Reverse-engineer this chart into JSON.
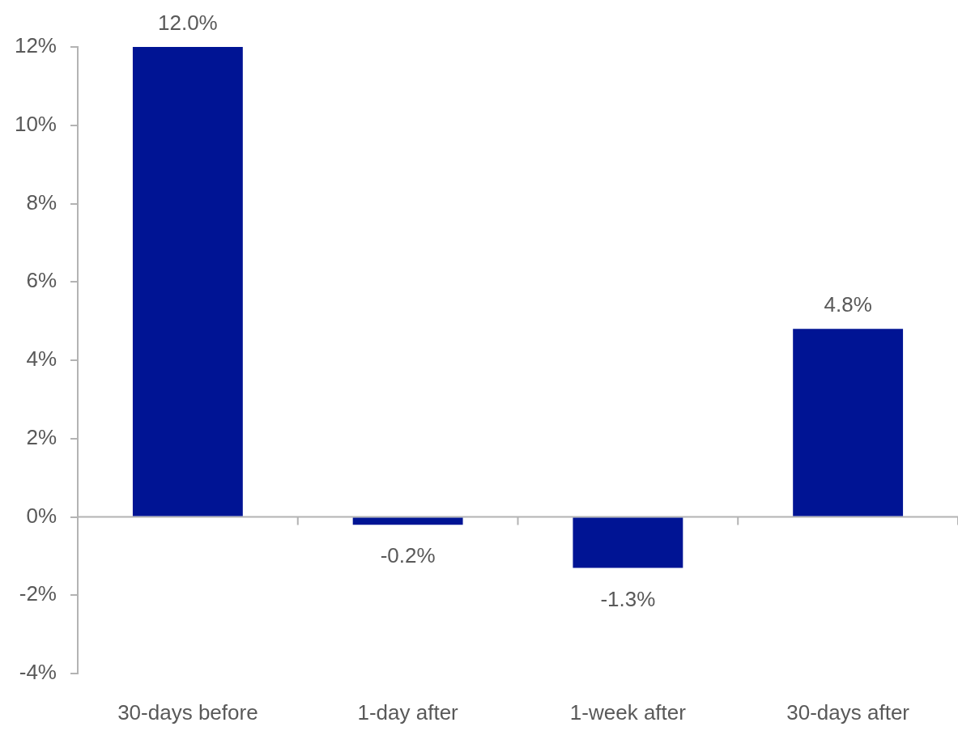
{
  "chart_data": {
    "type": "bar",
    "categories": [
      "30-days before",
      "1-day after",
      "1-week after",
      "30-days after"
    ],
    "values": [
      12.0,
      -0.2,
      -1.3,
      4.8
    ],
    "color": "#001494",
    "value_labels": [
      "12.0%",
      "-0.2%",
      "-1.3%",
      "4.8%"
    ],
    "ylim": [
      -4,
      12
    ],
    "yticks": [
      {
        "value": -4,
        "label": "-4%"
      },
      {
        "value": -2,
        "label": "-2%"
      },
      {
        "value": 0,
        "label": "0%"
      },
      {
        "value": 2,
        "label": "2%"
      },
      {
        "value": 4,
        "label": "4%"
      },
      {
        "value": 6,
        "label": "6%"
      },
      {
        "value": 8,
        "label": "8%"
      },
      {
        "value": 10,
        "label": "10%"
      },
      {
        "value": 12,
        "label": "12%"
      }
    ]
  }
}
